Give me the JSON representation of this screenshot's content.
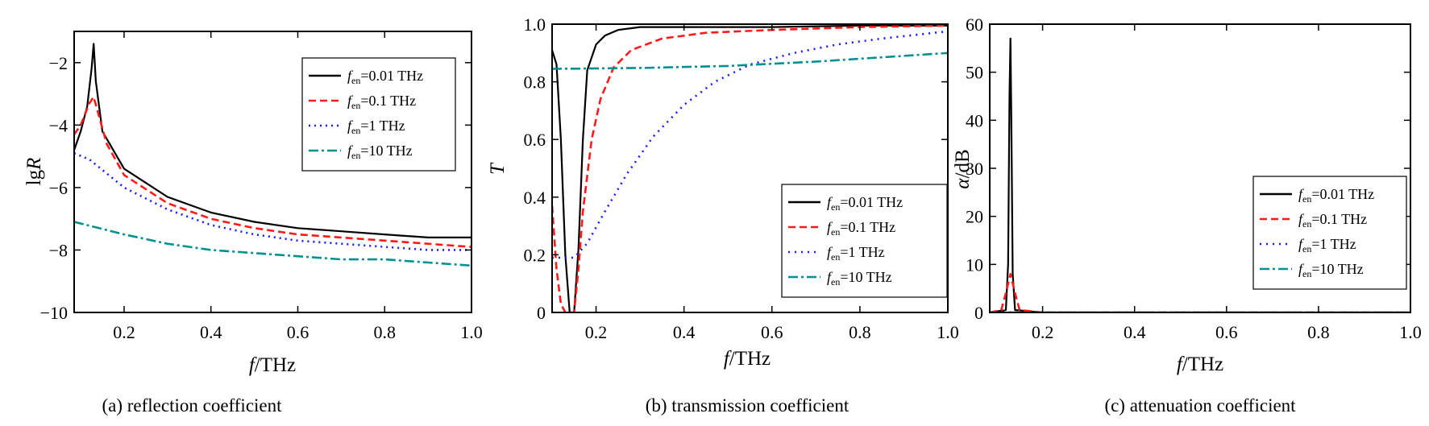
{
  "chart_data": [
    {
      "type": "line",
      "caption": "(a) reflection coefficient",
      "xlabel": "f/THz",
      "ylabel": "lgR",
      "xlim": [
        0.085,
        1.0
      ],
      "ylim": [
        -10,
        -1
      ],
      "xticks": [
        0.2,
        0.4,
        0.6,
        0.8,
        1.0
      ],
      "xtick_labels": [
        "0.2",
        "0.4",
        "0.6",
        "0.8",
        "1.0"
      ],
      "yticks": [
        -2,
        -4,
        -6,
        -8,
        -10
      ],
      "ytick_labels": [
        "−2",
        "−4",
        "−6",
        "−8",
        "−10"
      ],
      "legend": "top-right",
      "grid": false,
      "series": [
        {
          "name": "f_en=0.01 THz",
          "label_main": "f",
          "label_sub": "en",
          "label_rest": "=0.01 THz",
          "color": "#000000",
          "dash": "solid",
          "x": [
            0.085,
            0.1,
            0.115,
            0.125,
            0.13,
            0.135,
            0.15,
            0.2,
            0.3,
            0.4,
            0.5,
            0.6,
            0.7,
            0.8,
            0.9,
            1.0
          ],
          "y": [
            -4.8,
            -4.2,
            -3.4,
            -2.2,
            -1.4,
            -2.6,
            -4.2,
            -5.4,
            -6.3,
            -6.8,
            -7.1,
            -7.3,
            -7.4,
            -7.5,
            -7.6,
            -7.6
          ]
        },
        {
          "name": "f_en=0.1 THz",
          "label_main": "f",
          "label_sub": "en",
          "label_rest": "=0.1 THz",
          "color": "#ff1a1a",
          "dash": "9,5",
          "x": [
            0.085,
            0.1,
            0.12,
            0.13,
            0.14,
            0.16,
            0.2,
            0.3,
            0.4,
            0.5,
            0.6,
            0.7,
            0.8,
            0.9,
            1.0
          ],
          "y": [
            -4.3,
            -4.0,
            -3.3,
            -3.1,
            -3.6,
            -4.6,
            -5.6,
            -6.5,
            -7.0,
            -7.3,
            -7.5,
            -7.6,
            -7.7,
            -7.8,
            -7.9
          ]
        },
        {
          "name": "f_en=1 THz",
          "label_main": "f",
          "label_sub": "en",
          "label_rest": "=1 THz",
          "color": "#1a1aff",
          "dash": "2,5",
          "x": [
            0.085,
            0.12,
            0.2,
            0.3,
            0.4,
            0.5,
            0.6,
            0.7,
            0.8,
            0.9,
            1.0
          ],
          "y": [
            -4.9,
            -5.1,
            -6.0,
            -6.7,
            -7.2,
            -7.5,
            -7.7,
            -7.8,
            -7.9,
            -8.0,
            -8.0
          ]
        },
        {
          "name": "f_en=10 THz",
          "label_main": "f",
          "label_sub": "en",
          "label_rest": "=10 THz",
          "color": "#009090",
          "dash": "12,4,3,4",
          "x": [
            0.085,
            0.2,
            0.3,
            0.4,
            0.5,
            0.6,
            0.7,
            0.8,
            0.9,
            1.0
          ],
          "y": [
            -7.1,
            -7.5,
            -7.8,
            -8.0,
            -8.1,
            -8.2,
            -8.3,
            -8.3,
            -8.4,
            -8.5
          ]
        }
      ]
    },
    {
      "type": "line",
      "caption": "(b) transmission coefficient",
      "xlabel": "f/THz",
      "ylabel": "T",
      "xlim": [
        0.1,
        1.0
      ],
      "ylim": [
        0,
        1.0
      ],
      "xticks": [
        0.2,
        0.4,
        0.6,
        0.8,
        1.0
      ],
      "xtick_labels": [
        "0.2",
        "0.4",
        "0.6",
        "0.8",
        "1.0"
      ],
      "yticks": [
        0,
        0.2,
        0.4,
        0.6,
        0.8,
        1.0
      ],
      "ytick_labels": [
        "0",
        "0.2",
        "0.4",
        "0.6",
        "0.8",
        "1.0"
      ],
      "legend": "bottom-right",
      "grid": false,
      "series": [
        {
          "name": "f_en=0.01 THz",
          "label_main": "f",
          "label_sub": "en",
          "label_rest": "=0.01 THz",
          "color": "#000000",
          "dash": "solid",
          "x": [
            0.1,
            0.11,
            0.12,
            0.13,
            0.14,
            0.15,
            0.16,
            0.17,
            0.18,
            0.2,
            0.22,
            0.25,
            0.3,
            0.4,
            0.6,
            0.8,
            1.0
          ],
          "y": [
            0.91,
            0.86,
            0.6,
            0.2,
            0.0,
            0.0,
            0.22,
            0.6,
            0.84,
            0.93,
            0.96,
            0.98,
            0.99,
            0.99,
            0.99,
            0.995,
            0.995
          ]
        },
        {
          "name": "f_en=0.1 THz",
          "label_main": "f",
          "label_sub": "en",
          "label_rest": "=0.1 THz",
          "color": "#ff1a1a",
          "dash": "9,5",
          "x": [
            0.1,
            0.11,
            0.12,
            0.13,
            0.15,
            0.16,
            0.17,
            0.19,
            0.21,
            0.24,
            0.28,
            0.35,
            0.45,
            0.6,
            0.8,
            1.0
          ],
          "y": [
            0.37,
            0.15,
            0.03,
            0.0,
            0.0,
            0.15,
            0.35,
            0.6,
            0.74,
            0.85,
            0.91,
            0.95,
            0.97,
            0.98,
            0.99,
            0.995
          ]
        },
        {
          "name": "f_en=1 THz",
          "label_main": "f",
          "label_sub": "en",
          "label_rest": "=1 THz",
          "color": "#1a1aff",
          "dash": "2,6",
          "x": [
            0.1,
            0.12,
            0.15,
            0.18,
            0.22,
            0.27,
            0.33,
            0.4,
            0.47,
            0.55,
            0.65,
            0.75,
            0.85,
            1.0
          ],
          "y": [
            0.19,
            0.19,
            0.19,
            0.24,
            0.35,
            0.48,
            0.61,
            0.72,
            0.8,
            0.86,
            0.9,
            0.93,
            0.95,
            0.975
          ]
        },
        {
          "name": "f_en=10 THz",
          "label_main": "f",
          "label_sub": "en",
          "label_rest": "=10 THz",
          "color": "#009090",
          "dash": "12,4,3,4",
          "x": [
            0.1,
            0.3,
            0.5,
            0.7,
            0.9,
            1.0
          ],
          "y": [
            0.845,
            0.848,
            0.855,
            0.87,
            0.89,
            0.9
          ]
        }
      ]
    },
    {
      "type": "line",
      "caption": "(c) attenuation coefficient",
      "xlabel": "f/THz",
      "ylabel": "α/dB",
      "xlim": [
        0.085,
        1.0
      ],
      "ylim": [
        0,
        60
      ],
      "xticks": [
        0.2,
        0.4,
        0.6,
        0.8,
        1.0
      ],
      "xtick_labels": [
        "0.2",
        "0.4",
        "0.6",
        "0.8",
        "1.0"
      ],
      "yticks": [
        0,
        10,
        20,
        30,
        40,
        50,
        60
      ],
      "ytick_labels": [
        "0",
        "10",
        "20",
        "30",
        "40",
        "50",
        "60"
      ],
      "legend": "center-right",
      "grid": false,
      "series": [
        {
          "name": "f_en=0.01 THz",
          "label_main": "f",
          "label_sub": "en",
          "label_rest": "=0.01 THz",
          "color": "#000000",
          "dash": "solid",
          "x": [
            0.085,
            0.12,
            0.125,
            0.128,
            0.13,
            0.132,
            0.135,
            0.14,
            0.2,
            1.0
          ],
          "y": [
            0,
            0.5,
            10,
            45,
            57,
            40,
            8,
            0.5,
            0,
            0
          ]
        },
        {
          "name": "f_en=0.1 THz",
          "label_main": "f",
          "label_sub": "en",
          "label_rest": "=0.1 THz",
          "color": "#ff1a1a",
          "dash": "9,5",
          "x": [
            0.085,
            0.11,
            0.12,
            0.13,
            0.14,
            0.15,
            0.2,
            1.0
          ],
          "y": [
            0,
            0.5,
            4,
            8,
            4,
            0.5,
            0,
            0
          ]
        },
        {
          "name": "f_en=1 THz",
          "label_main": "f",
          "label_sub": "en",
          "label_rest": "=1 THz",
          "color": "#1a1aff",
          "dash": "2,6",
          "x": [
            0.085,
            1.0
          ],
          "y": [
            0,
            0
          ]
        },
        {
          "name": "f_en=10 THz",
          "label_main": "f",
          "label_sub": "en",
          "label_rest": "=10 THz",
          "color": "#009090",
          "dash": "12,4,3,4",
          "x": [
            0.085,
            1.0
          ],
          "y": [
            0,
            0
          ]
        }
      ]
    }
  ]
}
